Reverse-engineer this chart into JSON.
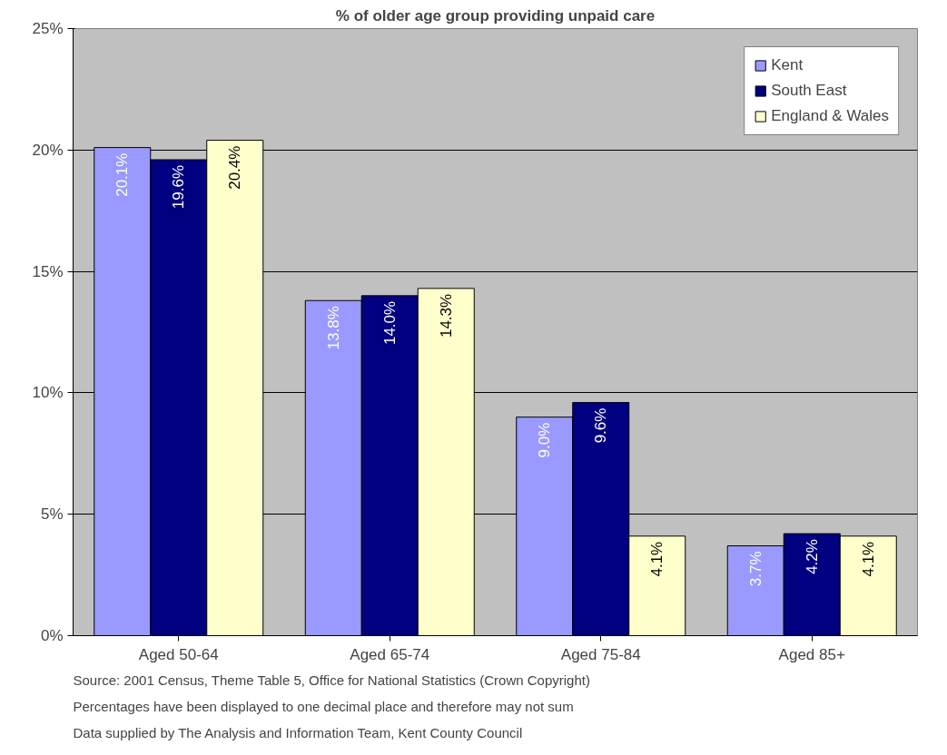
{
  "chart_data": {
    "type": "bar",
    "title": "% of older age group providing unpaid care",
    "categories": [
      "Aged 50-64",
      "Aged 65-74",
      "Aged 75-84",
      "Aged 85+"
    ],
    "series": [
      {
        "name": "Kent",
        "color": "#9999ff",
        "values": [
          20.1,
          13.8,
          9.0,
          3.7
        ],
        "value_labels": [
          "20.1%",
          "13.8%",
          "9.0%",
          "3.7%"
        ]
      },
      {
        "name": "South East",
        "color": "#000080",
        "values": [
          19.6,
          14.0,
          9.6,
          4.2
        ],
        "value_labels": [
          "19.6%",
          "14.0%",
          "9.6%",
          "4.2%"
        ]
      },
      {
        "name": "England & Wales",
        "color": "#ffffcc",
        "values": [
          20.4,
          14.3,
          4.1,
          4.1
        ],
        "value_labels": [
          "20.4%",
          "14.3%",
          "4.1%",
          "4.1%"
        ]
      }
    ],
    "ylim": [
      0,
      25
    ],
    "yticks": [
      {
        "value": 0,
        "label": "0%"
      },
      {
        "value": 5,
        "label": "5%"
      },
      {
        "value": 10,
        "label": "10%"
      },
      {
        "value": 15,
        "label": "15%"
      },
      {
        "value": 20,
        "label": "20%"
      },
      {
        "value": 25,
        "label": "25%"
      }
    ],
    "grid": "y",
    "legend": "top right",
    "annotations": [
      "Source:  2001 Census, Theme Table 5, Office for National Statistics (Crown Copyright)",
      "Percentages have been displayed to one decimal place and therefore may not sum",
      "Data supplied by The Analysis and Information Team, Kent County Council"
    ]
  }
}
